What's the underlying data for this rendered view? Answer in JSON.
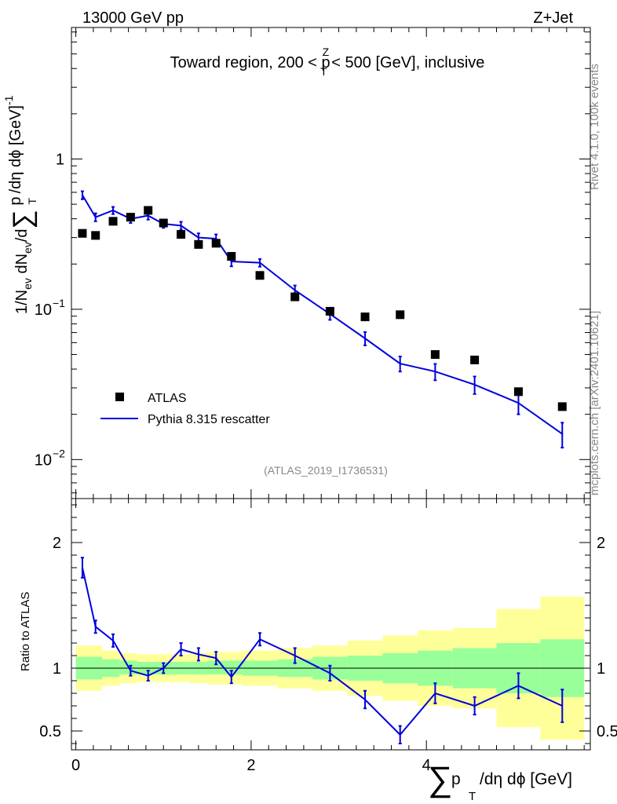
{
  "header": {
    "energy": "13000 GeV pp",
    "process": "Z+Jet"
  },
  "side": {
    "rivet": "Rivet 4.1.0,  100k events",
    "source": "mcplots.cern.ch [arXiv:2401.10621]"
  },
  "chart_data": [
    {
      "type": "scatter",
      "panel": "main",
      "title_parts": {
        "pre": "Toward region, 200 < p",
        "sub": "T",
        "sup": "Z",
        "post": " < 500 [GeV], inclusive"
      },
      "ylabel_parts": {
        "a": "1/N",
        "a_sub": "ev",
        "b": " dN",
        "b_sub": "ev",
        "c": "/d",
        "sum": "∑",
        "d": " p",
        "d_sub": "T",
        "e": " /dη dϕ  [GeV]",
        "e_sup": "-1"
      },
      "yscale": "log",
      "ylim": [
        0.0055,
        7.5
      ],
      "xlim": [
        -0.05,
        5.87
      ],
      "yticks": [
        {
          "value": 1,
          "label": "1"
        },
        {
          "value": 0.1,
          "label": "10",
          "sup": "−1"
        },
        {
          "value": 0.01,
          "label": "10",
          "sup": "−2"
        }
      ],
      "watermark": "(ATLAS_2019_I1736531)",
      "legend": {
        "position": "lower-left",
        "entries": [
          "ATLAS",
          "Pythia 8.315 rescatter"
        ]
      },
      "series": [
        {
          "name": "ATLAS",
          "marker": "square",
          "color": "#000000",
          "x": [
            0.075,
            0.225,
            0.425,
            0.625,
            0.825,
            1.0,
            1.2,
            1.4,
            1.6,
            1.775,
            2.1,
            2.5,
            2.9,
            3.3,
            3.7,
            4.1,
            4.55,
            5.05,
            5.55
          ],
          "y": [
            0.32,
            0.31,
            0.385,
            0.41,
            0.455,
            0.375,
            0.315,
            0.27,
            0.275,
            0.225,
            0.168,
            0.121,
            0.097,
            0.089,
            0.092,
            0.05,
            0.046,
            0.0283,
            0.0225
          ]
        },
        {
          "name": "Pythia 8.315 rescatter",
          "marker": "line",
          "color": "#0000dd",
          "x_low": [
            0.0,
            0.15,
            0.35,
            0.55,
            0.75,
            0.9,
            1.1,
            1.3,
            1.5,
            1.7,
            1.9,
            2.3,
            2.7,
            3.1,
            3.5,
            3.9,
            4.3,
            4.8,
            5.3
          ],
          "x_high": [
            0.15,
            0.35,
            0.55,
            0.75,
            0.9,
            1.1,
            1.3,
            1.5,
            1.7,
            1.9,
            2.3,
            2.7,
            3.1,
            3.5,
            3.9,
            4.3,
            4.8,
            5.3,
            5.8
          ],
          "x": [
            0.075,
            0.225,
            0.425,
            0.625,
            0.825,
            1.0,
            1.2,
            1.4,
            1.6,
            1.775,
            2.1,
            2.5,
            2.9,
            3.3,
            3.7,
            4.1,
            4.55,
            5.05,
            5.55
          ],
          "y": [
            0.575,
            0.41,
            0.455,
            0.4,
            0.42,
            0.37,
            0.36,
            0.3,
            0.295,
            0.208,
            0.204,
            0.134,
            0.093,
            0.064,
            0.0435,
            0.0385,
            0.0315,
            0.0238,
            0.0148
          ],
          "err": [
            0.035,
            0.025,
            0.025,
            0.025,
            0.025,
            0.022,
            0.022,
            0.02,
            0.02,
            0.015,
            0.012,
            0.01,
            0.008,
            0.0065,
            0.005,
            0.0048,
            0.0042,
            0.0038,
            0.0028
          ]
        }
      ]
    },
    {
      "type": "scatter",
      "panel": "ratio",
      "ylabel": "Ratio to ATLAS",
      "xlabel_parts": {
        "sum": "∑",
        "p": " p",
        "sub": "T",
        "rest": " /dη dϕ [GeV]"
      },
      "ylim": [
        0.35,
        2.35
      ],
      "xlim": [
        -0.05,
        5.87
      ],
      "yticks": [
        0.5,
        1,
        2
      ],
      "xticks": [
        0,
        2,
        4
      ],
      "band_edges": [
        0.0,
        0.3,
        0.5,
        0.7,
        0.9,
        1.1,
        1.3,
        1.5,
        1.7,
        1.9,
        2.3,
        2.7,
        3.1,
        3.5,
        3.9,
        4.3,
        4.8,
        5.3,
        5.8
      ],
      "band_green": [
        [
          0.91,
          1.09
        ],
        [
          0.93,
          1.07
        ],
        [
          0.95,
          1.06
        ],
        [
          0.95,
          1.05
        ],
        [
          0.95,
          1.05
        ],
        [
          0.95,
          1.05
        ],
        [
          0.95,
          1.05
        ],
        [
          0.95,
          1.06
        ],
        [
          0.95,
          1.06
        ],
        [
          0.94,
          1.06
        ],
        [
          0.93,
          1.07
        ],
        [
          0.91,
          1.09
        ],
        [
          0.9,
          1.1
        ],
        [
          0.88,
          1.12
        ],
        [
          0.86,
          1.14
        ],
        [
          0.84,
          1.16
        ],
        [
          0.8,
          1.2
        ],
        [
          0.77,
          1.23
        ]
      ],
      "band_yellow": [
        [
          0.82,
          1.18
        ],
        [
          0.86,
          1.14
        ],
        [
          0.88,
          1.12
        ],
        [
          0.89,
          1.11
        ],
        [
          0.89,
          1.11
        ],
        [
          0.89,
          1.11
        ],
        [
          0.88,
          1.12
        ],
        [
          0.87,
          1.13
        ],
        [
          0.87,
          1.13
        ],
        [
          0.86,
          1.14
        ],
        [
          0.84,
          1.16
        ],
        [
          0.82,
          1.18
        ],
        [
          0.78,
          1.22
        ],
        [
          0.74,
          1.26
        ],
        [
          0.7,
          1.3
        ],
        [
          0.68,
          1.32
        ],
        [
          0.53,
          1.47
        ],
        [
          0.43,
          1.57
        ]
      ],
      "series": [
        {
          "name": "Pythia 8.315 rescatter / ATLAS",
          "color": "#0000dd",
          "x": [
            0.075,
            0.225,
            0.425,
            0.625,
            0.825,
            1.0,
            1.2,
            1.4,
            1.6,
            1.775,
            2.1,
            2.5,
            2.9,
            3.3,
            3.7,
            4.1,
            4.55,
            5.05,
            5.55
          ],
          "y": [
            1.8,
            1.33,
            1.22,
            0.98,
            0.94,
            1.0,
            1.15,
            1.11,
            1.08,
            0.93,
            1.23,
            1.1,
            0.96,
            0.75,
            0.47,
            0.8,
            0.7,
            0.86,
            0.7
          ],
          "err": [
            0.08,
            0.05,
            0.05,
            0.04,
            0.04,
            0.04,
            0.05,
            0.05,
            0.05,
            0.05,
            0.05,
            0.06,
            0.06,
            0.07,
            0.07,
            0.08,
            0.07,
            0.1,
            0.13
          ]
        }
      ]
    }
  ]
}
